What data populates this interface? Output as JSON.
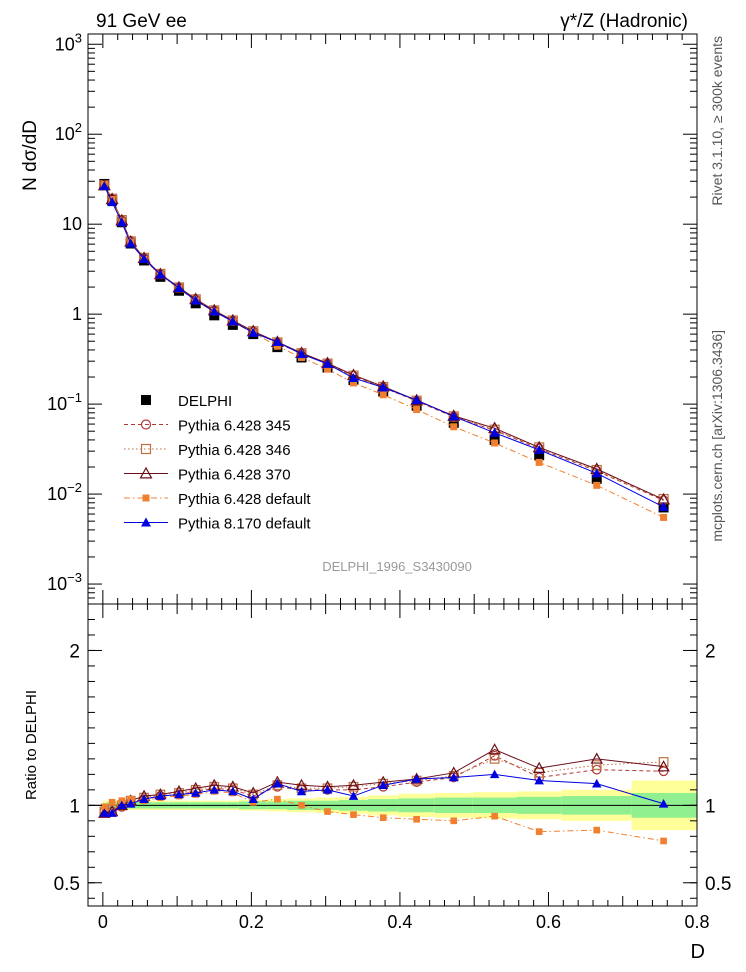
{
  "header": {
    "left": "91 GeV ee",
    "right": "γ*/Z (Hadronic)"
  },
  "side_labels": {
    "rivet": "Rivet 3.1.10, ≥ 300k events",
    "mcplots": "mcplots.cern.ch [arXiv:1306.3436]"
  },
  "watermark": "DELPHI_1996_S3430090",
  "colors": {
    "data": "#000000",
    "p345": "#b03a3a",
    "p346": "#c07040",
    "p370": "#6b0f1a",
    "pdefault": "#f08030",
    "p8": "#0000e0",
    "band_inner": "#90f090",
    "band_outer": "#ffff99"
  },
  "chart_data": [
    {
      "type": "scatter",
      "panel": "main",
      "ylabel": "N dσ/dD",
      "yscale": "log",
      "ylim": [
        0.0006,
        1300
      ],
      "xlim": [
        -0.02,
        0.8
      ],
      "yticks": [
        {
          "v": 1000,
          "base": "10",
          "exp": "3"
        },
        {
          "v": 100,
          "base": "10",
          "exp": "2"
        },
        {
          "v": 10,
          "base": "10",
          "exp": ""
        },
        {
          "v": 1,
          "base": "1",
          "exp": ""
        },
        {
          "v": 0.1,
          "base": "10",
          "exp": "−1"
        },
        {
          "v": 0.01,
          "base": "10",
          "exp": "−2"
        },
        {
          "v": 0.001,
          "base": "10",
          "exp": "−3"
        }
      ],
      "legend_position": "middle-left",
      "x": [
        0.002,
        0.0125,
        0.0255,
        0.0375,
        0.0555,
        0.0775,
        0.1025,
        0.125,
        0.15,
        0.175,
        0.2025,
        0.235,
        0.2675,
        0.3025,
        0.3375,
        0.3775,
        0.4225,
        0.4725,
        0.5275,
        0.5875,
        0.665,
        0.755
      ],
      "series": [
        {
          "name": "DELPHI",
          "key": "data",
          "marker": "square",
          "line": "none",
          "values": [
            28,
            18.5,
            10.5,
            6.1,
            3.95,
            2.6,
            1.82,
            1.32,
            0.97,
            0.76,
            0.6,
            0.43,
            0.33,
            0.255,
            0.185,
            0.138,
            0.096,
            0.062,
            0.04,
            0.027,
            0.0148,
            0.0071
          ]
        },
        {
          "name": "Pythia 6.428 345",
          "key": "p345",
          "marker": "open-circle",
          "line": "dashed",
          "values": [
            27,
            19.0,
            11.0,
            6.4,
            4.2,
            2.78,
            1.97,
            1.45,
            1.09,
            0.84,
            0.64,
            0.48,
            0.365,
            0.28,
            0.205,
            0.153,
            0.108,
            0.072,
            0.051,
            0.032,
            0.018,
            0.0085
          ]
        },
        {
          "name": "Pythia 6.428 346",
          "key": "p346",
          "marker": "open-square",
          "line": "dotted",
          "values": [
            27,
            19.2,
            11.1,
            6.45,
            4.22,
            2.8,
            1.98,
            1.46,
            1.1,
            0.85,
            0.645,
            0.485,
            0.368,
            0.282,
            0.207,
            0.155,
            0.109,
            0.073,
            0.052,
            0.033,
            0.0185,
            0.0088
          ]
        },
        {
          "name": "Pythia 6.428 370",
          "key": "p370",
          "marker": "open-triangle",
          "line": "solid",
          "values": [
            27,
            19.0,
            11.0,
            6.4,
            4.2,
            2.78,
            1.98,
            1.47,
            1.1,
            0.85,
            0.645,
            0.49,
            0.37,
            0.285,
            0.21,
            0.157,
            0.11,
            0.074,
            0.054,
            0.033,
            0.019,
            0.0087
          ]
        },
        {
          "name": "Pythia 6.428 default",
          "key": "pdefault",
          "marker": "filled-square-small",
          "line": "dashdot",
          "values": [
            27.5,
            18.8,
            10.8,
            6.3,
            4.05,
            2.72,
            1.92,
            1.4,
            1.07,
            0.82,
            0.62,
            0.44,
            0.33,
            0.245,
            0.172,
            0.127,
            0.087,
            0.056,
            0.037,
            0.0225,
            0.0125,
            0.0055
          ]
        },
        {
          "name": "Pythia 8.170 default",
          "key": "p8",
          "marker": "filled-triangle",
          "line": "solid",
          "values": [
            26.5,
            17.6,
            10.5,
            6.1,
            4.1,
            2.76,
            1.95,
            1.42,
            1.07,
            0.83,
            0.62,
            0.49,
            0.36,
            0.28,
            0.195,
            0.153,
            0.111,
            0.073,
            0.048,
            0.031,
            0.017,
            0.0072
          ]
        }
      ]
    },
    {
      "type": "scatter",
      "panel": "ratio",
      "ylabel": "Ratio to DELPHI",
      "xlabel": "D",
      "ylim": [
        0.35,
        2.3
      ],
      "xlim": [
        -0.02,
        0.8
      ],
      "yticks": [
        {
          "v": 2,
          "label": "2"
        },
        {
          "v": 1,
          "label": "1"
        },
        {
          "v": 0.5,
          "label": "0.5"
        }
      ],
      "xticks": [
        {
          "v": 0,
          "label": "0"
        },
        {
          "v": 0.2,
          "label": "0.2"
        },
        {
          "v": 0.4,
          "label": "0.4"
        },
        {
          "v": 0.6,
          "label": "0.6"
        },
        {
          "v": 0.8,
          "label": "0.8"
        }
      ],
      "x": [
        0.002,
        0.0125,
        0.0255,
        0.0375,
        0.0555,
        0.0775,
        0.1025,
        0.125,
        0.15,
        0.175,
        0.2025,
        0.235,
        0.2675,
        0.3025,
        0.3375,
        0.3775,
        0.4225,
        0.4725,
        0.5275,
        0.5875,
        0.665,
        0.755
      ],
      "band": {
        "edges": [
          0,
          0.005,
          0.02,
          0.031,
          0.044,
          0.067,
          0.088,
          0.117,
          0.133,
          0.167,
          0.183,
          0.222,
          0.248,
          0.287,
          0.318,
          0.357,
          0.398,
          0.447,
          0.498,
          0.557,
          0.618,
          0.712,
          0.8
        ],
        "inner": [
          0.015,
          0.02,
          0.02,
          0.02,
          0.02,
          0.02,
          0.02,
          0.02,
          0.02,
          0.02,
          0.025,
          0.025,
          0.03,
          0.03,
          0.035,
          0.04,
          0.045,
          0.05,
          0.05,
          0.055,
          0.06,
          0.08
        ],
        "outer": [
          0.03,
          0.03,
          0.03,
          0.03,
          0.03,
          0.03,
          0.03,
          0.03,
          0.03,
          0.03,
          0.035,
          0.04,
          0.045,
          0.05,
          0.055,
          0.065,
          0.075,
          0.08,
          0.085,
          0.09,
          0.1,
          0.16
        ]
      },
      "series": [
        {
          "name": "Pythia 6.428 345",
          "key": "p345",
          "marker": "open-circle",
          "line": "dashed",
          "values": [
            0.96,
            0.96,
            0.99,
            1.02,
            1.04,
            1.06,
            1.07,
            1.09,
            1.11,
            1.1,
            1.06,
            1.12,
            1.1,
            1.1,
            1.1,
            1.12,
            1.15,
            1.18,
            1.32,
            1.18,
            1.23,
            1.22
          ]
        },
        {
          "name": "Pythia 6.428 346",
          "key": "p346",
          "marker": "open-square",
          "line": "dotted",
          "values": [
            0.96,
            0.97,
            1.0,
            1.03,
            1.05,
            1.07,
            1.08,
            1.1,
            1.12,
            1.11,
            1.07,
            1.13,
            1.11,
            1.11,
            1.12,
            1.14,
            1.16,
            1.19,
            1.3,
            1.21,
            1.26,
            1.28
          ]
        },
        {
          "name": "Pythia 6.428 370",
          "key": "p370",
          "marker": "open-triangle",
          "line": "solid",
          "values": [
            0.95,
            0.96,
            1.0,
            1.03,
            1.06,
            1.07,
            1.09,
            1.11,
            1.13,
            1.12,
            1.08,
            1.15,
            1.13,
            1.12,
            1.13,
            1.15,
            1.17,
            1.21,
            1.36,
            1.24,
            1.3,
            1.25
          ]
        },
        {
          "name": "Pythia 6.428 default",
          "key": "pdefault",
          "marker": "filled-square-small",
          "line": "dashdot",
          "values": [
            0.99,
            1.02,
            1.03,
            1.04,
            1.03,
            1.05,
            1.06,
            1.07,
            1.09,
            1.08,
            1.02,
            1.04,
            1.0,
            0.96,
            0.94,
            0.92,
            0.91,
            0.9,
            0.93,
            0.83,
            0.84,
            0.77
          ]
        },
        {
          "name": "Pythia 8.170 default",
          "key": "p8",
          "marker": "filled-triangle",
          "line": "solid",
          "values": [
            0.95,
            0.95,
            1.0,
            1.01,
            1.04,
            1.06,
            1.07,
            1.08,
            1.1,
            1.09,
            1.04,
            1.14,
            1.09,
            1.1,
            1.06,
            1.13,
            1.17,
            1.18,
            1.2,
            1.16,
            1.14,
            1.01
          ]
        }
      ]
    }
  ]
}
